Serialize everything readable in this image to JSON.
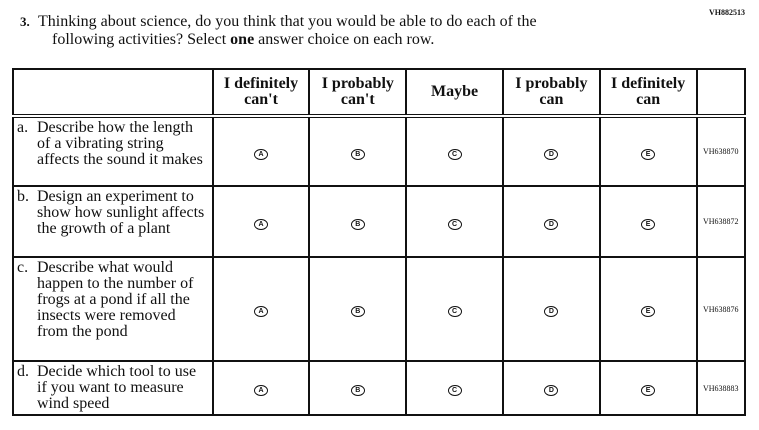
{
  "form_code": "VH882513",
  "question": {
    "number": "3.",
    "line1": "Thinking about science, do you think that you would be able to do each of the",
    "line2_pre": "following activities? Select ",
    "line2_bold": "one",
    "line2_post": " answer choice on each row."
  },
  "headers": [
    "I definitely can't",
    "I probably can't",
    "Maybe",
    "I probably can",
    "I definitely can"
  ],
  "options": [
    "A",
    "B",
    "C",
    "D",
    "E"
  ],
  "rows": [
    {
      "label": "a.",
      "text": "Describe how the length of a vibrating string affects the sound it makes",
      "id": "VH638870"
    },
    {
      "label": "b.",
      "text": "Design an experiment to show how sunlight affects the growth of a plant",
      "id": "VH638872"
    },
    {
      "label": "c.",
      "text": "Describe what would happen to the number of frogs at a pond if all the insects were removed from the pond",
      "id": "VH638876"
    },
    {
      "label": "d.",
      "text": "Decide which tool to use if you want to measure wind speed",
      "id": "VH638883"
    }
  ]
}
